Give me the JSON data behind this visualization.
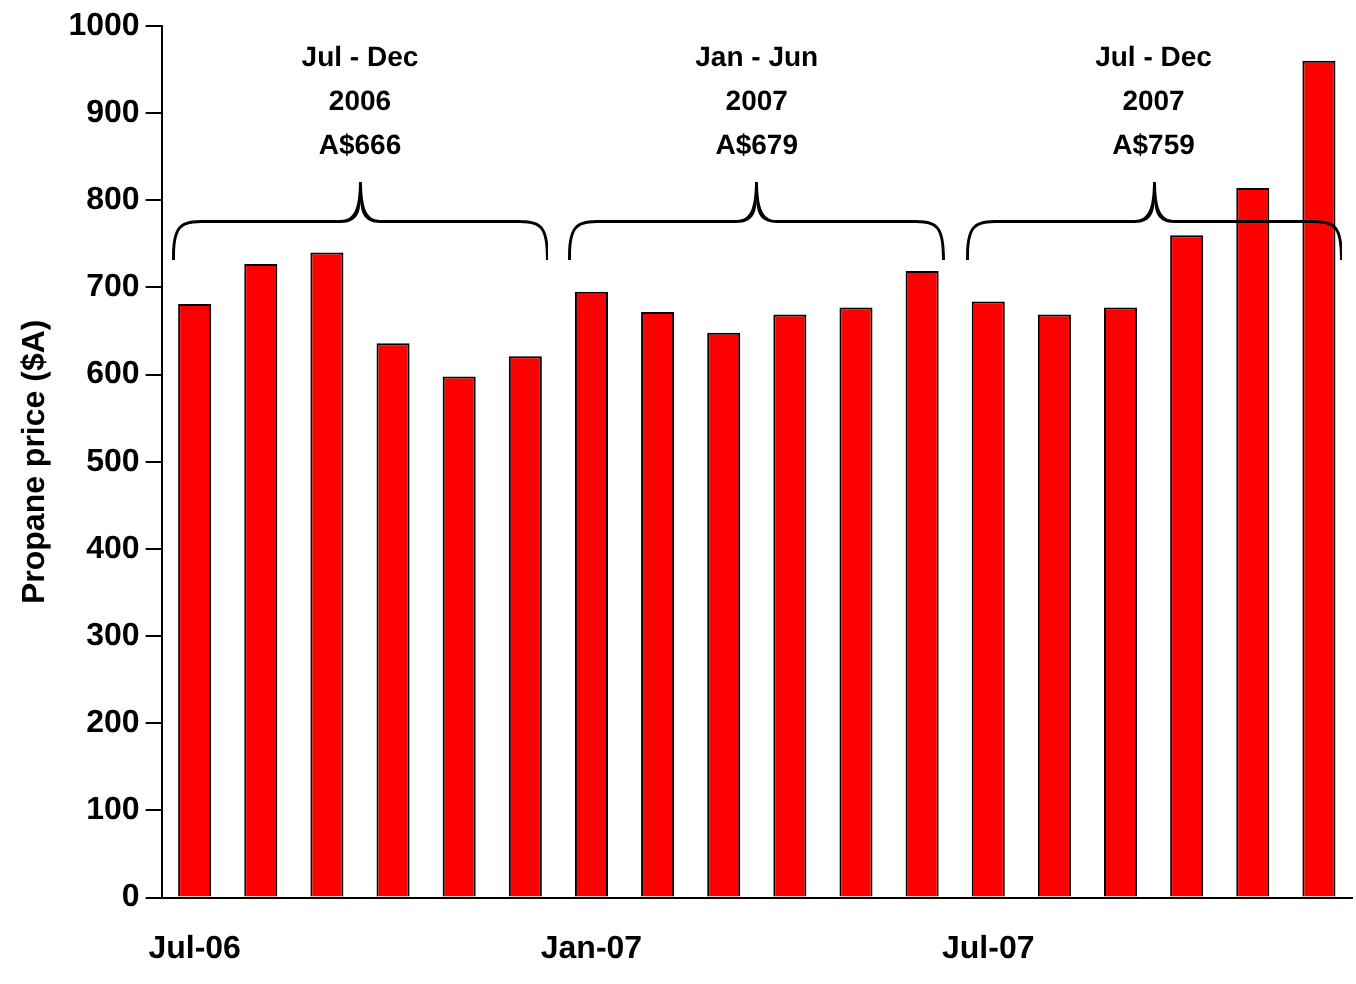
{
  "chart_data": {
    "type": "bar",
    "ylabel": "Propane price ($A)",
    "categories": [
      "Jul-06",
      null,
      null,
      null,
      null,
      null,
      "Jan-07",
      null,
      null,
      null,
      null,
      null,
      "Jul-07",
      null,
      null,
      null,
      null,
      null
    ],
    "values": [
      681,
      727,
      740,
      636,
      598,
      621,
      695,
      672,
      648,
      669,
      677,
      719,
      684,
      669,
      677,
      760,
      814,
      960
    ],
    "color": "#ff0000",
    "ylim": [
      0,
      1000
    ],
    "yticks": [
      0,
      100,
      200,
      300,
      400,
      500,
      600,
      700,
      800,
      900,
      1000
    ],
    "grid": false,
    "legend": false,
    "annotations": [
      "Jul - Dec\n2006\nA$666",
      "Jan - Jun\n2007\nA$679",
      "Jul - Dec\n2007\nA$759"
    ]
  }
}
